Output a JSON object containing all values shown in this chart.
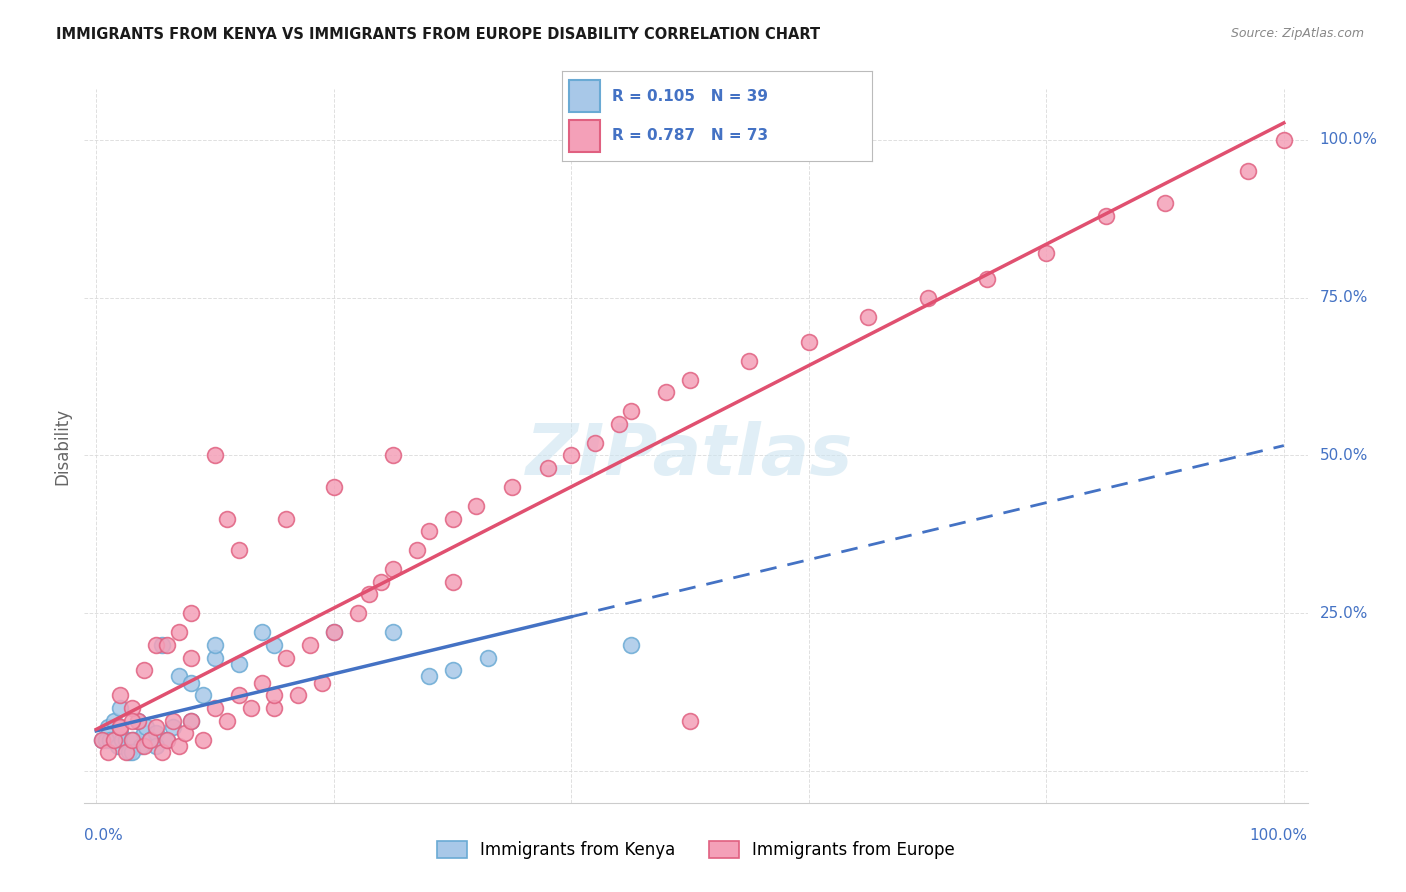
{
  "title": "IMMIGRANTS FROM KENYA VS IMMIGRANTS FROM EUROPE DISABILITY CORRELATION CHART",
  "source": "Source: ZipAtlas.com",
  "ylabel": "Disability",
  "kenya_color": "#a8c8e8",
  "kenya_edge_color": "#6aaad4",
  "europe_color": "#f4a0b8",
  "europe_edge_color": "#e06080",
  "kenya_line_color": "#4472C4",
  "europe_line_color": "#e05070",
  "legend_color": "#4472C4",
  "right_label_color": "#4472C4",
  "watermark_color": "#cce4f0",
  "kenya_R": 0.105,
  "kenya_N": 39,
  "europe_R": 0.787,
  "europe_N": 73,
  "kenya_x": [
    0.5,
    0.8,
    1.0,
    1.2,
    1.5,
    1.8,
    2.0,
    2.2,
    2.5,
    2.8,
    3.0,
    3.2,
    3.5,
    3.8,
    4.0,
    4.2,
    4.5,
    5.0,
    5.5,
    6.0,
    6.5,
    7.0,
    8.0,
    9.0,
    10.0,
    12.0,
    14.0,
    15.0,
    20.0,
    25.0,
    28.0,
    33.0,
    2.0,
    8.0,
    10.0,
    30.0,
    45.0,
    3.0,
    5.0
  ],
  "kenya_y": [
    5,
    5,
    7,
    5,
    8,
    4,
    6,
    5,
    5,
    3,
    5,
    5,
    8,
    4,
    6,
    7,
    5,
    6,
    20,
    5,
    7,
    15,
    14,
    12,
    18,
    17,
    22,
    20,
    22,
    22,
    15,
    18,
    10,
    8,
    20,
    16,
    20,
    3,
    4
  ],
  "europe_x": [
    0.5,
    1.0,
    1.5,
    2.0,
    2.5,
    3.0,
    3.5,
    4.0,
    4.5,
    5.0,
    5.5,
    6.0,
    6.5,
    7.0,
    7.5,
    8.0,
    9.0,
    10.0,
    11.0,
    12.0,
    13.0,
    14.0,
    15.0,
    16.0,
    17.0,
    18.0,
    19.0,
    20.0,
    22.0,
    23.0,
    24.0,
    25.0,
    27.0,
    28.0,
    30.0,
    32.0,
    35.0,
    38.0,
    40.0,
    42.0,
    44.0,
    45.0,
    48.0,
    50.0,
    55.0,
    60.0,
    65.0,
    70.0,
    75.0,
    80.0,
    85.0,
    90.0,
    97.0,
    100.0,
    3.0,
    5.0,
    8.0,
    12.0,
    16.0,
    20.0,
    25.0,
    30.0,
    2.0,
    7.0,
    11.0,
    3.0,
    4.0,
    6.0,
    2.0,
    8.0,
    10.0,
    15.0,
    50.0
  ],
  "europe_y": [
    5,
    3,
    5,
    7,
    3,
    5,
    8,
    4,
    5,
    7,
    3,
    5,
    8,
    4,
    6,
    8,
    5,
    10,
    8,
    12,
    10,
    14,
    10,
    18,
    12,
    20,
    14,
    22,
    25,
    28,
    30,
    32,
    35,
    38,
    40,
    42,
    45,
    48,
    50,
    52,
    55,
    57,
    60,
    62,
    65,
    68,
    72,
    75,
    78,
    82,
    88,
    90,
    95,
    100,
    10,
    20,
    25,
    35,
    40,
    45,
    50,
    30,
    7,
    22,
    40,
    8,
    16,
    20,
    12,
    18,
    50,
    12,
    8
  ]
}
